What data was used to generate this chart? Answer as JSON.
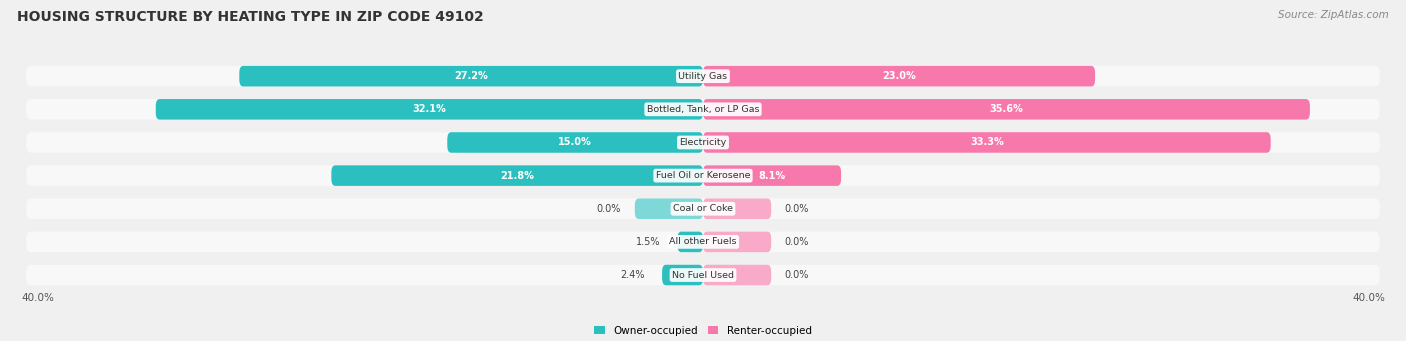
{
  "title": "HOUSING STRUCTURE BY HEATING TYPE IN ZIP CODE 49102",
  "source": "Source: ZipAtlas.com",
  "categories": [
    "Utility Gas",
    "Bottled, Tank, or LP Gas",
    "Electricity",
    "Fuel Oil or Kerosene",
    "Coal or Coke",
    "All other Fuels",
    "No Fuel Used"
  ],
  "owner_values": [
    27.2,
    32.1,
    15.0,
    21.8,
    0.0,
    1.5,
    2.4
  ],
  "renter_values": [
    23.0,
    35.6,
    33.3,
    8.1,
    0.0,
    0.0,
    0.0
  ],
  "owner_color": "#2bbfbf",
  "renter_color": "#f778aa",
  "owner_color_light": "#7fd8d8",
  "renter_color_light": "#f9aac8",
  "axis_max": 40.0,
  "background_color": "#f0f0f0",
  "bar_bg_color": "#e2e2e2",
  "row_bg_color": "#f8f8f8",
  "title_fontsize": 10,
  "source_fontsize": 7.5,
  "bar_height": 0.62,
  "zero_bar_width": 4.0,
  "label_threshold": 8.0
}
